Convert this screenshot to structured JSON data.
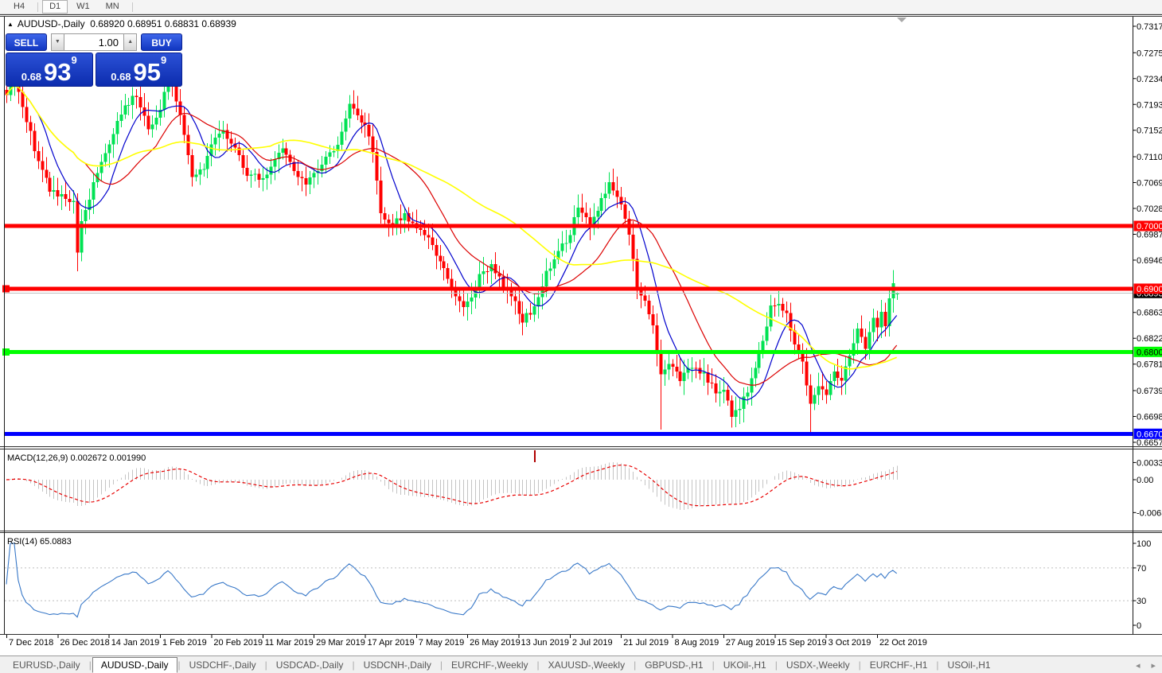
{
  "toolbar": {
    "timeframes": [
      "H4",
      "D1",
      "W1",
      "MN"
    ],
    "active": "D1"
  },
  "icons": {
    "title_marker": "▲",
    "spin_up": "▲",
    "spin_down": "▼",
    "scroll_left": "◂",
    "scroll_right": "▸",
    "shift_marker": "▼"
  },
  "chart": {
    "symbol": "AUDUSD-,Daily",
    "ohlc_text": "0.68920 0.68951 0.68831 0.68939"
  },
  "trade_panel": {
    "sell_label": "SELL",
    "buy_label": "BUY",
    "volume": "1.00",
    "sell_price": {
      "small": "0.68",
      "big": "93",
      "sup": "9"
    },
    "buy_price": {
      "small": "0.68",
      "big": "95",
      "sup": "9"
    }
  },
  "chart_data": {
    "type": "candlestick",
    "symbol": "AUDUSD",
    "timeframe": "Daily",
    "current_bar": {
      "open": 0.6892,
      "high": 0.68951,
      "low": 0.68831,
      "close": 0.68939
    },
    "price_axis_ticks": [
      "0.73170",
      "0.72750",
      "0.72340",
      "0.71930",
      "0.71520",
      "0.71100",
      "0.70690",
      "0.70280",
      "0.69870",
      "0.69460",
      "0.68630",
      "0.68220",
      "0.67810",
      "0.67390",
      "0.66980",
      "0.66570"
    ],
    "date_labels": [
      "7 Dec 2018",
      "26 Dec 2018",
      "14 Jan 2019",
      "1 Feb 2019",
      "20 Feb 2019",
      "11 Mar 2019",
      "29 Mar 2019",
      "17 Apr 2019",
      "7 May 2019",
      "26 May 2019",
      "13 Jun 2019",
      "2 Jul 2019",
      "21 Jul 2019",
      "8 Aug 2019",
      "27 Aug 2019",
      "15 Sep 2019",
      "3 Oct 2019",
      "22 Oct 2019"
    ],
    "bars_per_date_tick": 13,
    "levels": [
      {
        "value": 0.70002,
        "label": "0.70002",
        "color": "#FF0000",
        "text_color": "#FFFFFF",
        "width": 5,
        "marker": false
      },
      {
        "value": 0.69006,
        "label": "0.69006",
        "color": "#FF0000",
        "text_color": "#FFFFFF",
        "width": 5,
        "marker": true
      },
      {
        "value": 0.68004,
        "label": "0.68004",
        "color": "#00FF00",
        "text_color": "#000000",
        "width": 5,
        "marker": true
      },
      {
        "value": 0.66705,
        "label": "0.66705",
        "color": "#0000FF",
        "text_color": "#FFFFFF",
        "width": 5,
        "marker": false
      }
    ],
    "bid_line": {
      "value": 0.68939,
      "label": "0.68939",
      "line_color": "#C0C0C0",
      "bg": "#000000",
      "text_color": "#FFFFFF"
    },
    "candle_colors": {
      "up": "#00E253",
      "down": "#FF0000"
    },
    "moving_averages": [
      {
        "period": 9,
        "color": "#0000CD"
      },
      {
        "period": 21,
        "color": "#DC0000"
      },
      {
        "period": 50,
        "color": "#FFFF00"
      }
    ],
    "close_anchors": [
      [
        0,
        0.7208
      ],
      [
        2,
        0.7235
      ],
      [
        5,
        0.717
      ],
      [
        8,
        0.71
      ],
      [
        11,
        0.706
      ],
      [
        14,
        0.7045
      ],
      [
        17,
        0.7035
      ],
      [
        18,
        0.696
      ],
      [
        19,
        0.701
      ],
      [
        22,
        0.7065
      ],
      [
        26,
        0.7135
      ],
      [
        30,
        0.719
      ],
      [
        33,
        0.721
      ],
      [
        36,
        0.7155
      ],
      [
        39,
        0.7185
      ],
      [
        41,
        0.724
      ],
      [
        44,
        0.718
      ],
      [
        47,
        0.708
      ],
      [
        50,
        0.7095
      ],
      [
        52,
        0.7135
      ],
      [
        55,
        0.7155
      ],
      [
        58,
        0.712
      ],
      [
        61,
        0.7085
      ],
      [
        64,
        0.7075
      ],
      [
        67,
        0.709
      ],
      [
        70,
        0.7125
      ],
      [
        73,
        0.709
      ],
      [
        76,
        0.7065
      ],
      [
        78,
        0.7085
      ],
      [
        81,
        0.7105
      ],
      [
        84,
        0.7125
      ],
      [
        87,
        0.719
      ],
      [
        89,
        0.7175
      ],
      [
        91,
        0.7155
      ],
      [
        93,
        0.712
      ],
      [
        95,
        0.702
      ],
      [
        98,
        0.7005
      ],
      [
        101,
        0.7015
      ],
      [
        104,
        0.6995
      ],
      [
        107,
        0.6985
      ],
      [
        110,
        0.6945
      ],
      [
        113,
        0.69
      ],
      [
        116,
        0.687
      ],
      [
        118,
        0.689
      ],
      [
        120,
        0.692
      ],
      [
        123,
        0.6935
      ],
      [
        126,
        0.6905
      ],
      [
        129,
        0.688
      ],
      [
        131,
        0.685
      ],
      [
        134,
        0.687
      ],
      [
        137,
        0.6925
      ],
      [
        140,
        0.696
      ],
      [
        143,
        0.6985
      ],
      [
        145,
        0.7035
      ],
      [
        148,
        0.7
      ],
      [
        151,
        0.704
      ],
      [
        153,
        0.707
      ],
      [
        156,
        0.704
      ],
      [
        158,
        0.699
      ],
      [
        160,
        0.6905
      ],
      [
        162,
        0.688
      ],
      [
        164,
        0.684
      ],
      [
        166,
        0.677
      ],
      [
        168,
        0.6785
      ],
      [
        171,
        0.6755
      ],
      [
        174,
        0.678
      ],
      [
        177,
        0.6765
      ],
      [
        180,
        0.674
      ],
      [
        182,
        0.6745
      ],
      [
        184,
        0.67
      ],
      [
        186,
        0.6715
      ],
      [
        188,
        0.674
      ],
      [
        190,
        0.678
      ],
      [
        192,
        0.682
      ],
      [
        194,
        0.687
      ],
      [
        196,
        0.688
      ],
      [
        198,
        0.686
      ],
      [
        200,
        0.6815
      ],
      [
        202,
        0.678
      ],
      [
        204,
        0.672
      ],
      [
        206,
        0.6745
      ],
      [
        208,
        0.6735
      ],
      [
        210,
        0.677
      ],
      [
        212,
        0.6755
      ],
      [
        214,
        0.68
      ],
      [
        216,
        0.6835
      ],
      [
        218,
        0.681
      ],
      [
        220,
        0.685
      ],
      [
        221,
        0.684
      ],
      [
        222,
        0.6865
      ],
      [
        223,
        0.6845
      ],
      [
        224,
        0.688
      ],
      [
        225,
        0.6915
      ],
      [
        226,
        0.68939
      ]
    ],
    "key_candles": {
      "18": {
        "low": 0.6928
      },
      "166": {
        "low": 0.6677
      },
      "204": {
        "low": 0.6672
      },
      "225": {
        "high": 0.693
      },
      "226": {
        "open": 0.6892,
        "high": 0.68951,
        "low": 0.68831,
        "close": 0.68939
      }
    },
    "macd": {
      "label": "MACD(12,26,9) 0.002672 0.001990",
      "fast": 12,
      "slow": 26,
      "signal": 9,
      "axis_labels": [
        "0.00332",
        "0.00",
        "-0.00636"
      ],
      "histogram_color": "#C4C4C4",
      "signal_color": "#E80000",
      "event_mark_index": 134,
      "event_mark_color": "#B00000"
    },
    "rsi": {
      "label": "RSI(14) 65.0883",
      "period": 14,
      "axis_labels": [
        "100",
        "70",
        "30",
        "0"
      ],
      "axis_values": [
        100,
        70,
        30,
        0
      ],
      "guide_levels": [
        70,
        30
      ],
      "line_color": "#3878C8",
      "guide_color": "#BEBEBE"
    }
  },
  "tabs": {
    "items": [
      "EURUSD-,Daily",
      "AUDUSD-,Daily",
      "USDCHF-,Daily",
      "USDCAD-,Daily",
      "USDCNH-,Daily",
      "EURCHF-,Weekly",
      "XAUUSD-,Weekly",
      "GBPUSD-,H1",
      "UKOil-,H1",
      "USDX-,Weekly",
      "EURCHF-,H1",
      "USOil-,H1"
    ],
    "active": "AUDUSD-,Daily"
  }
}
